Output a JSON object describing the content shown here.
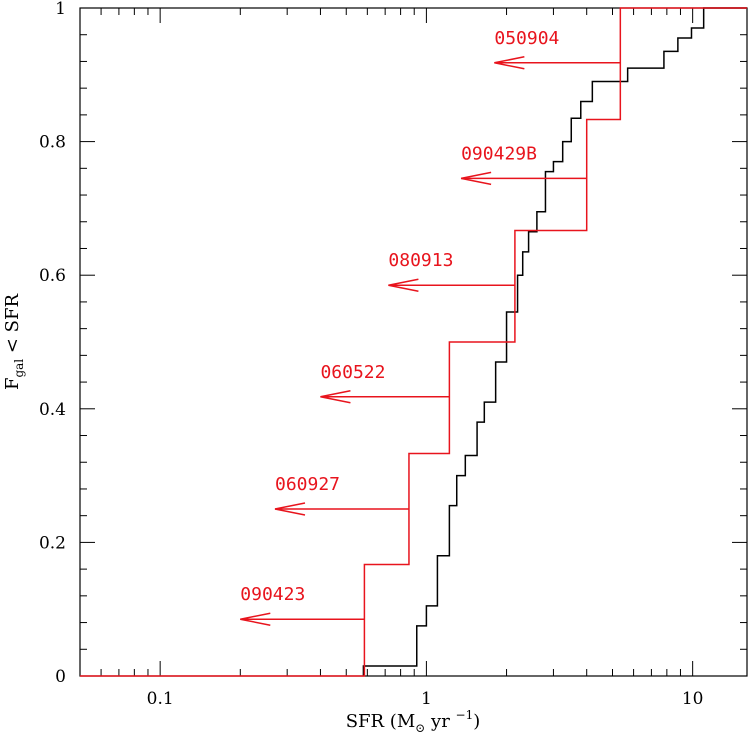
{
  "chart_data": {
    "type": "line",
    "xscale": "log",
    "xlim": [
      0.05,
      16
    ],
    "ylim": [
      0,
      1
    ],
    "xticks_major": [
      0.1,
      1,
      10
    ],
    "xtick_labels": [
      "0.1",
      "1",
      "10"
    ],
    "yticks": [
      0,
      0.2,
      0.4,
      0.6,
      0.8,
      1
    ],
    "ytick_labels": [
      "0",
      "0.2",
      "0.4",
      "0.6",
      "0.8",
      "1"
    ],
    "xlabel": {
      "pre": "SFR (M",
      "sub": "⊙",
      "mid": " yr ",
      "sup": "−1",
      "post": ")"
    },
    "ylabel": {
      "pre": "F",
      "sub": "gal",
      "post": " < SFR"
    },
    "grid": false,
    "colors": {
      "black_series": "#000000",
      "red_series": "#e8141d"
    },
    "series": [
      {
        "color": "black",
        "style": "step",
        "x": [
          0.58,
          0.92,
          1.0,
          1.1,
          1.22,
          1.3,
          1.4,
          1.55,
          1.65,
          1.82,
          2.0,
          2.2,
          2.3,
          2.42,
          2.6,
          2.8,
          3.0,
          3.25,
          3.5,
          3.8,
          4.2,
          4.9,
          5.7,
          6.5,
          7.8,
          8.8,
          9.9,
          11,
          16
        ],
        "y": [
          0.015,
          0.075,
          0.105,
          0.18,
          0.255,
          0.3,
          0.33,
          0.38,
          0.41,
          0.47,
          0.545,
          0.6,
          0.635,
          0.665,
          0.695,
          0.755,
          0.77,
          0.8,
          0.835,
          0.86,
          0.89,
          0.89,
          0.91,
          0.91,
          0.935,
          0.955,
          0.97,
          1.0,
          1.0
        ]
      },
      {
        "color": "red",
        "style": "step",
        "x": [
          0.05,
          0.585,
          0.86,
          1.22,
          2.15,
          4.0,
          5.35,
          16
        ],
        "y": [
          0,
          0.167,
          0.333,
          0.5,
          0.667,
          0.833,
          1.0,
          1.0
        ]
      }
    ],
    "upper_limits": [
      {
        "label": "090423",
        "x_from": 0.585,
        "x_to": 0.2,
        "y": 0.085
      },
      {
        "label": "060927",
        "x_from": 0.86,
        "x_to": 0.27,
        "y": 0.25
      },
      {
        "label": "060522",
        "x_from": 1.22,
        "x_to": 0.4,
        "y": 0.418
      },
      {
        "label": "080913",
        "x_from": 2.15,
        "x_to": 0.72,
        "y": 0.585
      },
      {
        "label": "090429B",
        "x_from": 4.0,
        "x_to": 1.35,
        "y": 0.745
      },
      {
        "label": "050904",
        "x_from": 5.35,
        "x_to": 1.8,
        "y": 0.918
      }
    ]
  }
}
